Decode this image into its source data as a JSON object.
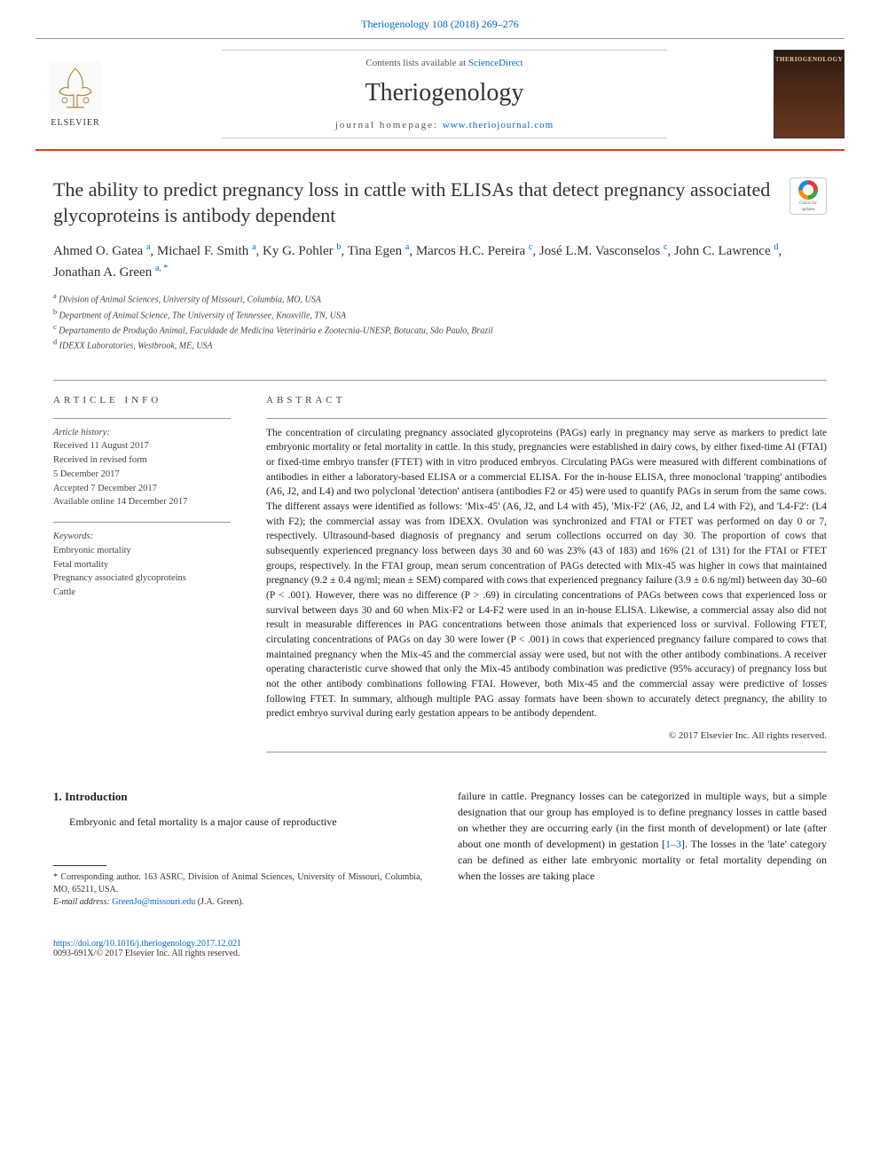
{
  "header": {
    "citation": "Theriogenology 108 (2018) 269–276",
    "contents_prefix": "Contents lists available at ",
    "contents_link": "ScienceDirect",
    "journal": "Theriogenology",
    "homepage_prefix": "journal homepage: ",
    "homepage_link": "www.theriojournal.com",
    "elsevier": "ELSEVIER",
    "cover_title": "THERIOGENOLOGY"
  },
  "crossmark": {
    "line1": "Check for",
    "line2": "updates"
  },
  "article": {
    "title": "The ability to predict pregnancy loss in cattle with ELISAs that detect pregnancy associated glycoproteins is antibody dependent",
    "authors_html": "Ahmed O. Gatea <sup>a</sup>, Michael F. Smith <sup>a</sup>, Ky G. Pohler <sup>b</sup>, Tina Egen <sup>a</sup>, Marcos H.C. Pereira <sup>c</sup>, José L.M. Vasconselos <sup>c</sup>, John C. Lawrence <sup>d</sup>, Jonathan A. Green <sup>a, <span class=\"ast\">*</span></sup>",
    "affiliations": [
      "a Division of Animal Sciences, University of Missouri, Columbia, MO, USA",
      "b Department of Animal Science, The University of Tennessee, Knoxville, TN, USA",
      "c Departamento de Produção Animal, Faculdade de Medicina Veterinária e Zootecnia-UNESP, Botucatu, São Paulo, Brazil",
      "d IDEXX Laboratories, Westbrook, ME, USA"
    ]
  },
  "info": {
    "heading": "ARTICLE INFO",
    "history_label": "Article history:",
    "history": [
      "Received 11 August 2017",
      "Received in revised form",
      "5 December 2017",
      "Accepted 7 December 2017",
      "Available online 14 December 2017"
    ],
    "keywords_label": "Keywords:",
    "keywords": [
      "Embryonic mortality",
      "Fetal mortality",
      "Pregnancy associated glycoproteins",
      "Cattle"
    ]
  },
  "abstract": {
    "heading": "ABSTRACT",
    "text": "The concentration of circulating pregnancy associated glycoproteins (PAGs) early in pregnancy may serve as markers to predict late embryonic mortality or fetal mortality in cattle. In this study, pregnancies were established in dairy cows, by either fixed-time AI (FTAI) or fixed-time embryo transfer (FTET) with in vitro produced embryos. Circulating PAGs were measured with different combinations of antibodies in either a laboratory-based ELISA or a commercial ELISA. For the in-house ELISA, three monoclonal 'trapping' antibodies (A6, J2, and L4) and two polyclonal 'detection' antisera (antibodies F2 or 45) were used to quantify PAGs in serum from the same cows. The different assays were identified as follows: 'Mix-45' (A6, J2, and L4 with 45), 'Mix-F2' (A6, J2, and L4 with F2), and 'L4-F2': (L4 with F2); the commercial assay was from IDEXX. Ovulation was synchronized and FTAI or FTET was performed on day 0 or 7, respectively. Ultrasound-based diagnosis of pregnancy and serum collections occurred on day 30. The proportion of cows that subsequently experienced pregnancy loss between days 30 and 60 was 23% (43 of 183) and 16% (21 of 131) for the FTAI or FTET groups, respectively. In the FTAI group, mean serum concentration of PAGs detected with Mix-45 was higher in cows that maintained pregnancy (9.2 ± 0.4 ng/ml; mean ± SEM) compared with cows that experienced pregnancy failure (3.9 ± 0.6 ng/ml) between day 30–60 (P < .001). However, there was no difference (P > .69) in circulating concentrations of PAGs between cows that experienced loss or survival between days 30 and 60 when Mix-F2 or L4-F2 were used in an in-house ELISA. Likewise, a commercial assay also did not result in measurable differences in PAG concentrations between those animals that experienced loss or survival. Following FTET, circulating concentrations of PAGs on day 30 were lower (P < .001) in cows that experienced pregnancy failure compared to cows that maintained pregnancy when the Mix-45 and the commercial assay were used, but not with the other antibody combinations. A receiver operating characteristic curve showed that only the Mix-45 antibody combination was predictive (95% accuracy) of pregnancy loss but not the other antibody combinations following FTAI. However, both Mix-45 and the commercial assay were predictive of losses following FTET. In summary, although multiple PAG assay formats have been shown to accurately detect pregnancy, the ability to predict embryo survival during early gestation appears to be antibody dependent.",
    "copyright": "© 2017 Elsevier Inc. All rights reserved."
  },
  "body": {
    "section_heading": "1. Introduction",
    "col1_p1": "Embryonic and fetal mortality is a major cause of reproductive",
    "col2_p1": "failure in cattle. Pregnancy losses can be categorized in multiple ways, but a simple designation that our group has employed is to define pregnancy losses in cattle based on whether they are occurring early (in the first month of development) or late (after about one month of development) in gestation [",
    "col2_ref": "1–3",
    "col2_p1_end": "]. The losses in the 'late' category can be defined as either late embryonic mortality or fetal mortality depending on when the losses are taking place"
  },
  "footnote": {
    "corr": "* Corresponding author. 163 ASRC, Division of Animal Sciences, University of Missouri, Columbia, MO, 65211, USA.",
    "email_label": "E-mail address: ",
    "email": "GreenJo@missouri.edu",
    "email_suffix": " (J.A. Green)."
  },
  "doi": {
    "link": "https://doi.org/10.1016/j.theriogenology.2017.12.021",
    "issn": "0093-691X/© 2017 Elsevier Inc. All rights reserved."
  },
  "colors": {
    "accent": "#d84315",
    "link": "#0066cc"
  }
}
